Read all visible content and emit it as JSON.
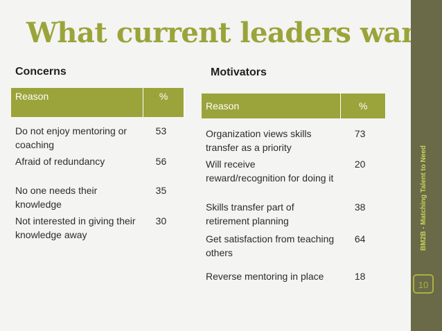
{
  "slide": {
    "title": "What current leaders want",
    "sidebar_text": "BM2B - Matching Talent to Need",
    "page_number": "10",
    "accent_color": "#9aa43a"
  },
  "concerns": {
    "heading": "Concerns",
    "columns": [
      "Reason",
      "%"
    ],
    "rows": [
      {
        "reason": "Do not enjoy mentoring or coaching",
        "pct": "53"
      },
      {
        "reason": "Afraid of redundancy",
        "pct": "56"
      },
      {
        "reason": "No one needs their knowledge",
        "pct": "35"
      },
      {
        "reason": "Not interested in giving their knowledge away",
        "pct": "30"
      }
    ]
  },
  "motivators": {
    "heading": "Motivators",
    "columns": [
      "Reason",
      "%"
    ],
    "rows": [
      {
        "reason": "Organization views skills transfer as a priority",
        "pct": "73"
      },
      {
        "reason": "Will receive reward/recognition for doing it",
        "pct": "20"
      },
      {
        "reason": "Skills  transfer part of retirement planning",
        "pct": "38"
      },
      {
        "reason": "Get satisfaction from teaching others",
        "pct": "64"
      },
      {
        "reason": "Reverse mentoring in place",
        "pct": "18"
      }
    ]
  }
}
